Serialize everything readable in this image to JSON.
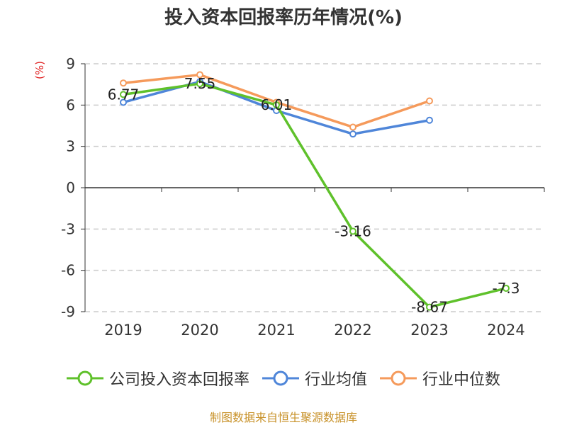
{
  "title": "投入资本回报率历年情况(%)",
  "unit_label": "(%)",
  "source_text": "制图数据来自恒生聚源数据库",
  "colors": {
    "company": "#5fc12b",
    "industry_avg": "#4f86d9",
    "industry_median": "#f59a5b",
    "grid": "#cccccc",
    "axis": "#333333",
    "unit": "#e02020",
    "source": "#c8922a"
  },
  "chart_data": {
    "type": "line",
    "title": "投入资本回报率历年情况(%)",
    "ylabel": "(%)",
    "categories": [
      "2019",
      "2020",
      "2021",
      "2022",
      "2023",
      "2024"
    ],
    "ylim": [
      -9,
      9
    ],
    "yticks": [
      9,
      6,
      3,
      0,
      -3,
      -6,
      -9
    ],
    "ytick_labels": [
      "9",
      "6",
      "3",
      "0",
      "-3",
      "-6",
      "-9"
    ],
    "grid": true,
    "legend_position": "bottom",
    "series": [
      {
        "name": "公司投入资本回报率",
        "color_key": "company",
        "values": [
          6.77,
          7.55,
          6.01,
          -3.16,
          -8.67,
          -7.3
        ],
        "data_labels": [
          "6.77",
          "7.55",
          "6.01",
          "-3.16",
          "-8.67",
          "-7.3"
        ]
      },
      {
        "name": "行业均值",
        "color_key": "industry_avg",
        "values": [
          6.2,
          7.7,
          5.6,
          3.9,
          4.9,
          null
        ]
      },
      {
        "name": "行业中位数",
        "color_key": "industry_median",
        "values": [
          7.6,
          8.2,
          6.2,
          4.4,
          6.3,
          null
        ]
      }
    ]
  }
}
